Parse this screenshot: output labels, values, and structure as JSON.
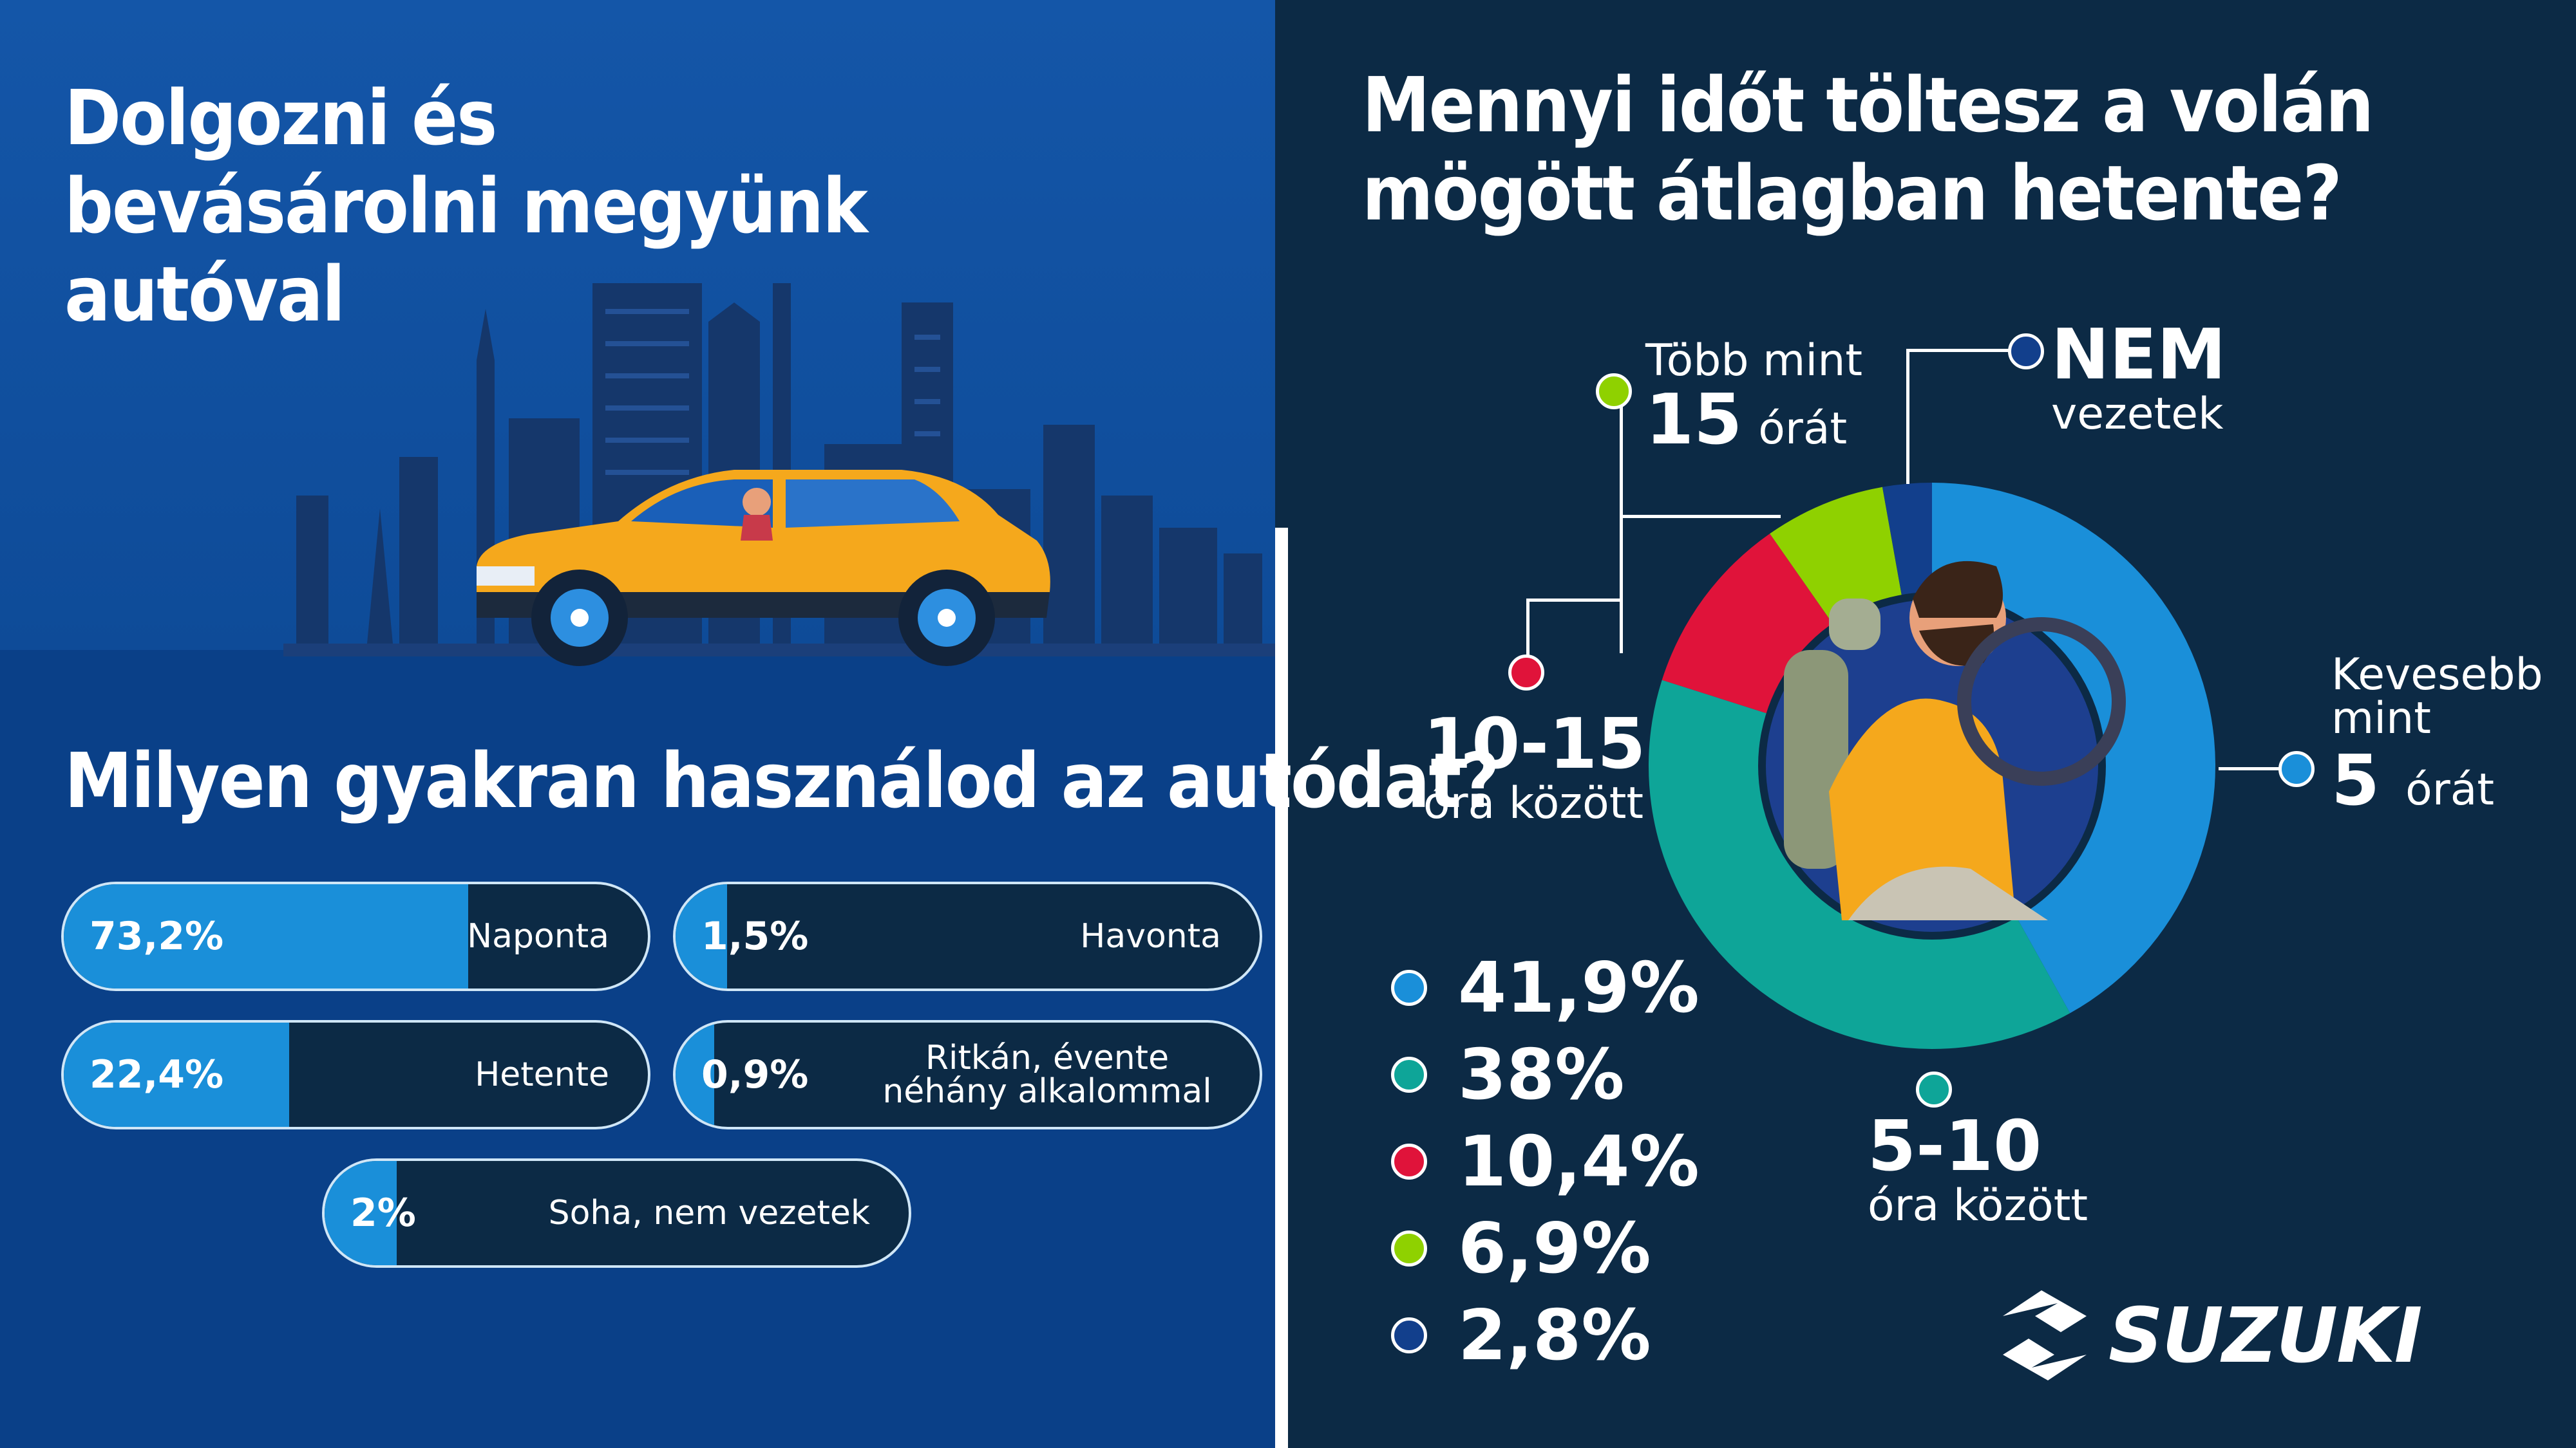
{
  "left": {
    "title": "Dolgozni és bevásárolni megyünk autóval",
    "question": "Milyen gyakran használod az autódat?"
  },
  "right": {
    "question": "Mennyi időt töltesz a volán mögött átlagban hetente?"
  },
  "chart_data": [
    {
      "type": "bar",
      "title": "Milyen gyakran használod az autódat?",
      "categories": [
        "Naponta",
        "Havonta",
        "Hetente",
        "Ritkán, évente néhány alkalommal",
        "Soha, nem vezetek"
      ],
      "values": [
        73.2,
        1.5,
        22.4,
        0.9,
        2
      ],
      "value_labels": [
        "73,2%",
        "1,5%",
        "22,4%",
        "0,9%",
        "2%"
      ],
      "unit": "%"
    },
    {
      "type": "pie",
      "title": "Mennyi időt töltesz a volán mögött átlagban hetente?",
      "slices": [
        {
          "label_main": "5",
          "label_pre": "Kevesebb mint",
          "label_post": "órát",
          "value": 41.9,
          "value_label": "41,9%",
          "color": "#1a8fd9"
        },
        {
          "label_main": "5-10",
          "label_post": "óra között",
          "value": 38,
          "value_label": "38%",
          "color": "#0ea598"
        },
        {
          "label_main": "10-15",
          "label_post": "óra között",
          "value": 10.4,
          "value_label": "10,4%",
          "color": "#e0133a"
        },
        {
          "label_main": "15",
          "label_pre": "Több mint",
          "label_post": "órát",
          "value": 6.9,
          "value_label": "6,9%",
          "color": "#8fd100"
        },
        {
          "label_main": "NEM",
          "label_post": "vezetek",
          "value": 2.8,
          "value_label": "2,8%",
          "color": "#123f8c"
        }
      ]
    }
  ],
  "brand": {
    "name": "SUZUKI"
  },
  "colors": {
    "accent_blue": "#1a8fd9",
    "navy": "#0c2a45",
    "teal": "#0ea598",
    "red": "#e0133a",
    "green": "#8fd100",
    "dark_blue": "#123f8c",
    "car_yellow": "#f5a81c"
  }
}
